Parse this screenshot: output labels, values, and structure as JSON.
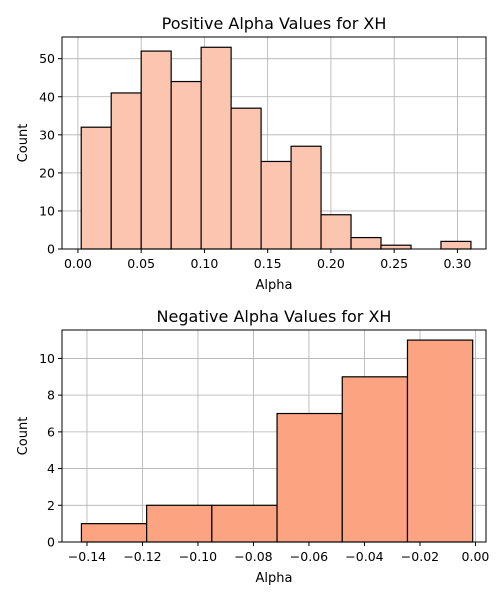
{
  "chart_data": [
    {
      "type": "bar",
      "title": "Positive Alpha Values for XH",
      "xlabel": "Alpha",
      "ylabel": "Count",
      "xlim": [
        -0.0126,
        0.3226
      ],
      "ylim": [
        0,
        55.7
      ],
      "xticks": [
        0.0,
        0.05,
        0.1,
        0.15,
        0.2,
        0.25,
        0.3
      ],
      "xtick_labels": [
        "0.00",
        "0.05",
        "0.10",
        "0.15",
        "0.20",
        "0.25",
        "0.30"
      ],
      "yticks": [
        0,
        10,
        20,
        30,
        40,
        50
      ],
      "ytick_labels": [
        "0",
        "10",
        "20",
        "30",
        "40",
        "50"
      ],
      "grid": true,
      "bar_color": "#fcc5b0",
      "bins": [
        [
          0.0026,
          0.0263
        ],
        [
          0.0263,
          0.05
        ],
        [
          0.05,
          0.0737
        ],
        [
          0.0737,
          0.0974
        ],
        [
          0.0974,
          0.1211
        ],
        [
          0.1211,
          0.1448
        ],
        [
          0.1448,
          0.1685
        ],
        [
          0.1685,
          0.1922
        ],
        [
          0.1922,
          0.2159
        ],
        [
          0.2159,
          0.2396
        ],
        [
          0.2396,
          0.2633
        ],
        [
          0.2633,
          0.287
        ],
        [
          0.287,
          0.3107
        ]
      ],
      "values": [
        32,
        41,
        52,
        44,
        53,
        37,
        23,
        27,
        9,
        3,
        1,
        0,
        2
      ]
    },
    {
      "type": "bar",
      "title": "Negative Alpha Values for XH",
      "xlabel": "Alpha",
      "ylabel": "Count",
      "xlim": [
        -0.149,
        0.0038
      ],
      "ylim": [
        0,
        11.55
      ],
      "xticks": [
        -0.14,
        -0.12,
        -0.1,
        -0.08,
        -0.06,
        -0.04,
        -0.02,
        0.0
      ],
      "xtick_labels": [
        "−0.14",
        "−0.12",
        "−0.10",
        "−0.08",
        "−0.06",
        "−0.04",
        "−0.02",
        "0.00"
      ],
      "yticks": [
        0,
        2,
        4,
        6,
        8,
        10
      ],
      "ytick_labels": [
        "0",
        "2",
        "4",
        "6",
        "8",
        "10"
      ],
      "grid": true,
      "bar_color": "#fca382",
      "bins": [
        [
          -0.142,
          -0.1185
        ],
        [
          -0.1185,
          -0.095
        ],
        [
          -0.095,
          -0.0715
        ],
        [
          -0.0715,
          -0.048
        ],
        [
          -0.048,
          -0.0245
        ],
        [
          -0.0245,
          -0.001
        ]
      ],
      "values": [
        1,
        2,
        2,
        7,
        9,
        11
      ]
    }
  ]
}
